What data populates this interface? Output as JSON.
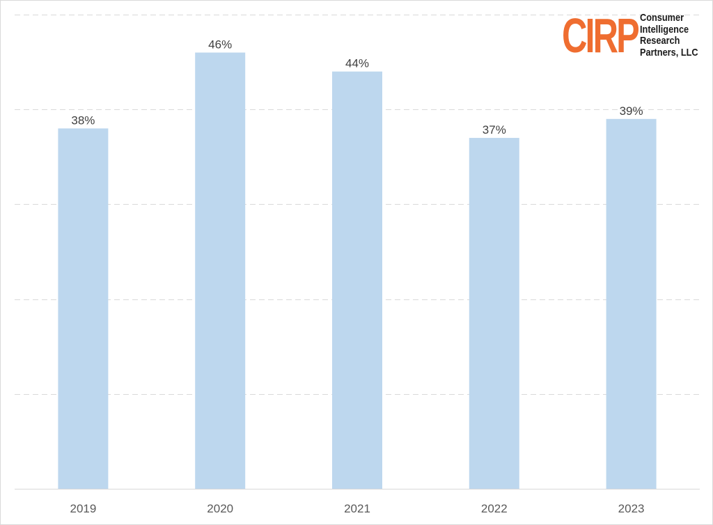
{
  "chart_data": {
    "type": "bar",
    "categories": [
      "2019",
      "2020",
      "2021",
      "2022",
      "2023"
    ],
    "values": [
      38,
      46,
      44,
      37,
      39
    ],
    "value_labels": [
      "38%",
      "46%",
      "44%",
      "37%",
      "39%"
    ],
    "ylim": [
      0,
      50
    ],
    "gridlines": true,
    "legend": "none",
    "colors": {
      "bar": "#bdd7ee",
      "gridline": "#d9d9d9",
      "label": "#404040"
    }
  },
  "logo": {
    "mark": "CIRP",
    "lines": [
      "Consumer",
      "Intelligence",
      "Research",
      "Partners, LLC"
    ],
    "color": "#ef6d30"
  }
}
